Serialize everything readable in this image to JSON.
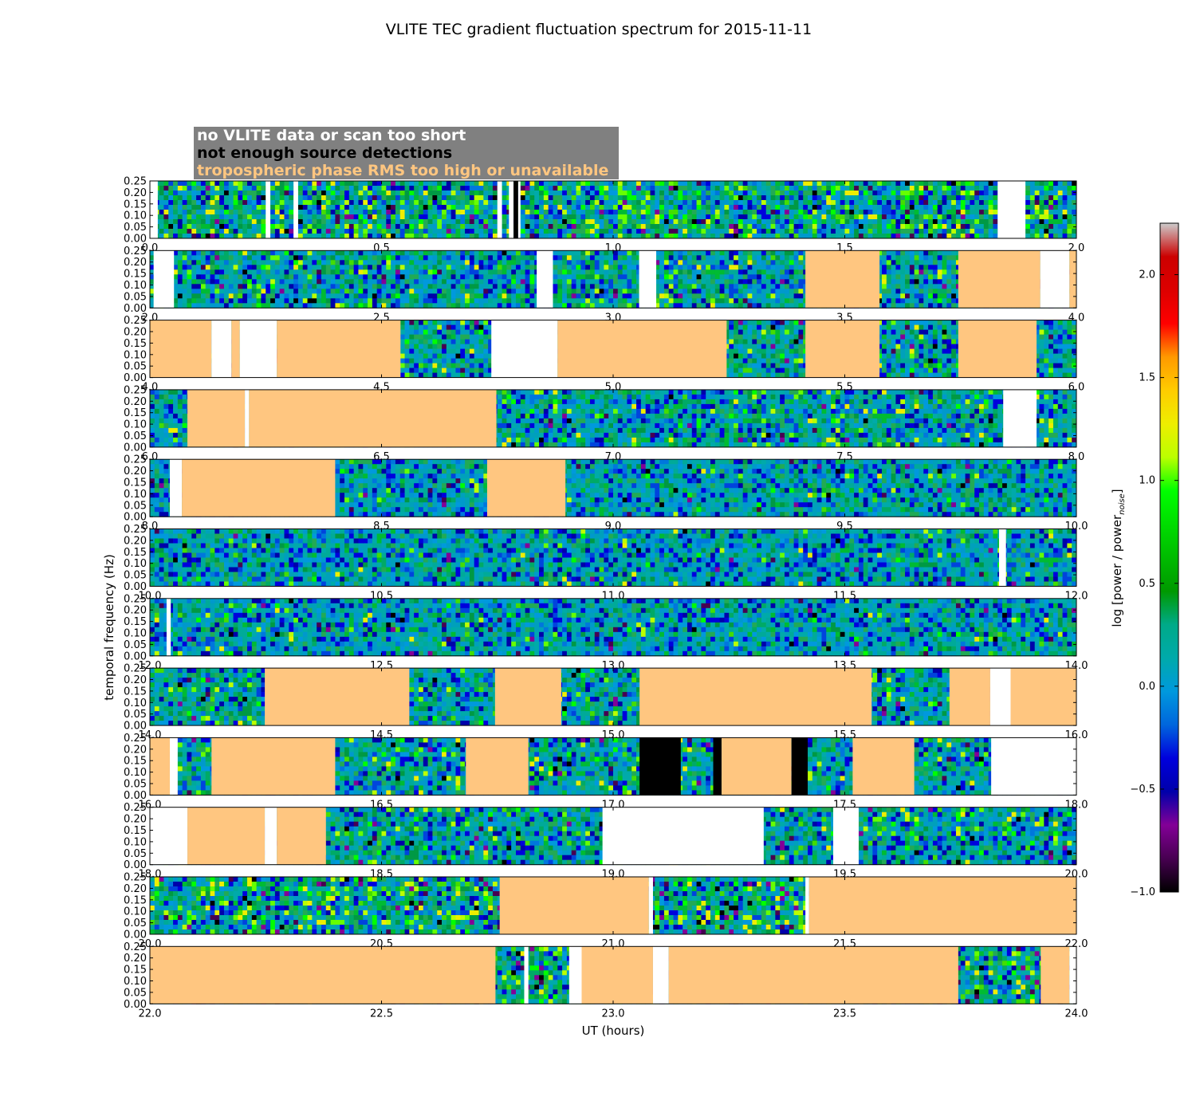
{
  "chart_data": {
    "type": "heatmap",
    "title": "VLITE TEC gradient fluctuation spectrum for 2015-11-11",
    "xlabel": "UT (hours)",
    "ylabel": "temporal frequency (Hz)",
    "ylim": [
      0,
      0.25
    ],
    "yticks": [
      "0.00",
      "0.05",
      "0.10",
      "0.15",
      "0.20",
      "0.25"
    ],
    "colorbar": {
      "label": "log [power / power",
      "label_sub": "noise",
      "label_close": "]",
      "range": [
        -1.0,
        2.25
      ],
      "ticks": [
        "−1.0",
        "−0.5",
        "0.0",
        "0.5",
        "1.0",
        "1.5",
        "2.0"
      ],
      "tick_values": [
        -1.0,
        -0.5,
        0.0,
        0.5,
        1.0,
        1.5,
        2.0
      ],
      "colormap": "nipy_spectral"
    },
    "legend": [
      {
        "label": "no VLITE data or scan too short",
        "color": "#ffffff"
      },
      {
        "label": "not enough source detections",
        "color": "#000000"
      },
      {
        "label": "tropospheric phase RMS too high or unavailable",
        "color": "#ffc680"
      }
    ],
    "legend_box_color": "#808080",
    "flag_colors": {
      "nodata": "#ffffff",
      "lowdet": "#000000",
      "trop": "#ffc680"
    },
    "panels": [
      {
        "start": 0,
        "xticks": [
          "0.0",
          "0.5",
          "1.0",
          "1.5",
          "2.0"
        ],
        "data_intensity": "high",
        "segments": [
          {
            "from": 0.0,
            "to": 0.017,
            "kind": "nodata"
          },
          {
            "from": 0.25,
            "to": 0.26,
            "kind": "nodata"
          },
          {
            "from": 0.31,
            "to": 0.32,
            "kind": "nodata"
          },
          {
            "from": 0.75,
            "to": 0.76,
            "kind": "nodata"
          },
          {
            "from": 0.775,
            "to": 0.785,
            "kind": "nodata"
          },
          {
            "from": 0.785,
            "to": 0.795,
            "kind": "lowdet"
          },
          {
            "from": 0.795,
            "to": 0.8,
            "kind": "nodata"
          },
          {
            "from": 1.83,
            "to": 1.89,
            "kind": "nodata"
          }
        ]
      },
      {
        "start": 2,
        "xticks": [
          "2.0",
          "2.5",
          "3.0",
          "3.5",
          "4.0"
        ],
        "data_intensity": "medium",
        "segments": [
          {
            "from": 2.008,
            "to": 2.052,
            "kind": "nodata"
          },
          {
            "from": 2.835,
            "to": 2.87,
            "kind": "nodata"
          },
          {
            "from": 3.056,
            "to": 3.093,
            "kind": "nodata"
          },
          {
            "from": 3.415,
            "to": 3.575,
            "kind": "trop"
          },
          {
            "from": 3.745,
            "to": 3.922,
            "kind": "trop"
          },
          {
            "from": 3.922,
            "to": 3.985,
            "kind": "nodata"
          },
          {
            "from": 3.985,
            "to": 4.0,
            "kind": "trop"
          }
        ]
      },
      {
        "start": 4,
        "xticks": [
          "4.0",
          "4.5",
          "5.0",
          "5.5",
          "6.0"
        ],
        "data_intensity": "medium",
        "segments": [
          {
            "from": 4.0,
            "to": 4.133,
            "kind": "trop"
          },
          {
            "from": 4.133,
            "to": 4.176,
            "kind": "nodata"
          },
          {
            "from": 4.176,
            "to": 4.194,
            "kind": "trop"
          },
          {
            "from": 4.194,
            "to": 4.274,
            "kind": "nodata"
          },
          {
            "from": 4.274,
            "to": 4.541,
            "kind": "trop"
          },
          {
            "from": 4.737,
            "to": 4.88,
            "kind": "nodata"
          },
          {
            "from": 4.88,
            "to": 5.245,
            "kind": "trop"
          },
          {
            "from": 5.415,
            "to": 5.575,
            "kind": "trop"
          },
          {
            "from": 5.745,
            "to": 5.914,
            "kind": "trop"
          }
        ]
      },
      {
        "start": 6,
        "xticks": [
          "6.0",
          "6.5",
          "7.0",
          "7.5",
          "8.0"
        ],
        "data_intensity": "medium",
        "segments": [
          {
            "from": 6.081,
            "to": 6.205,
            "kind": "trop"
          },
          {
            "from": 6.205,
            "to": 6.214,
            "kind": "nodata"
          },
          {
            "from": 6.214,
            "to": 6.748,
            "kind": "trop"
          },
          {
            "from": 7.842,
            "to": 7.914,
            "kind": "nodata"
          }
        ]
      },
      {
        "start": 8,
        "xticks": [
          "8.0",
          "8.5",
          "9.0",
          "9.5",
          "10.0"
        ],
        "data_intensity": "low",
        "segments": [
          {
            "from": 8.043,
            "to": 8.069,
            "kind": "nodata"
          },
          {
            "from": 8.069,
            "to": 8.4,
            "kind": "trop"
          },
          {
            "from": 8.728,
            "to": 8.897,
            "kind": "trop"
          }
        ]
      },
      {
        "start": 10,
        "xticks": [
          "10.0",
          "10.5",
          "11.0",
          "11.5",
          "12.0"
        ],
        "data_intensity": "low",
        "segments": [
          {
            "from": 11.833,
            "to": 11.848,
            "kind": "nodata"
          }
        ]
      },
      {
        "start": 12,
        "xticks": [
          "12.0",
          "12.5",
          "13.0",
          "13.5",
          "14.0"
        ],
        "data_intensity": "low",
        "segments": [
          {
            "from": 12.036,
            "to": 12.045,
            "kind": "nodata"
          }
        ]
      },
      {
        "start": 14,
        "xticks": [
          "14.0",
          "14.5",
          "15.0",
          "15.5",
          "16.0"
        ],
        "data_intensity": "medium",
        "segments": [
          {
            "from": 14.248,
            "to": 14.56,
            "kind": "trop"
          },
          {
            "from": 14.745,
            "to": 14.888,
            "kind": "trop"
          },
          {
            "from": 15.057,
            "to": 15.558,
            "kind": "trop"
          },
          {
            "from": 15.726,
            "to": 15.814,
            "kind": "trop"
          },
          {
            "from": 15.814,
            "to": 15.858,
            "kind": "nodata"
          },
          {
            "from": 15.858,
            "to": 16.0,
            "kind": "trop"
          }
        ]
      },
      {
        "start": 16,
        "xticks": [
          "16.0",
          "16.5",
          "17.0",
          "17.5",
          "18.0"
        ],
        "data_intensity": "medium",
        "segments": [
          {
            "from": 16.0,
            "to": 16.043,
            "kind": "trop"
          },
          {
            "from": 16.043,
            "to": 16.06,
            "kind": "nodata"
          },
          {
            "from": 16.133,
            "to": 16.4,
            "kind": "trop"
          },
          {
            "from": 16.682,
            "to": 16.817,
            "kind": "trop"
          },
          {
            "from": 17.057,
            "to": 17.146,
            "kind": "lowdet"
          },
          {
            "from": 17.216,
            "to": 17.234,
            "kind": "lowdet"
          },
          {
            "from": 17.234,
            "to": 17.385,
            "kind": "trop"
          },
          {
            "from": 17.385,
            "to": 17.42,
            "kind": "lowdet"
          },
          {
            "from": 17.517,
            "to": 17.65,
            "kind": "trop"
          },
          {
            "from": 17.816,
            "to": 18.0,
            "kind": "nodata"
          }
        ]
      },
      {
        "start": 18,
        "xticks": [
          "18.0",
          "18.5",
          "19.0",
          "19.5",
          "20.0"
        ],
        "data_intensity": "medium",
        "segments": [
          {
            "from": 18.0,
            "to": 18.081,
            "kind": "nodata"
          },
          {
            "from": 18.081,
            "to": 18.248,
            "kind": "trop"
          },
          {
            "from": 18.248,
            "to": 18.274,
            "kind": "nodata"
          },
          {
            "from": 18.274,
            "to": 18.38,
            "kind": "trop"
          },
          {
            "from": 18.977,
            "to": 19.325,
            "kind": "nodata"
          },
          {
            "from": 19.475,
            "to": 19.53,
            "kind": "nodata"
          }
        ]
      },
      {
        "start": 20,
        "xticks": [
          "20.0",
          "20.5",
          "21.0",
          "21.5",
          "22.0"
        ],
        "data_intensity": "high",
        "segments": [
          {
            "from": 20.755,
            "to": 21.077,
            "kind": "trop"
          },
          {
            "from": 21.077,
            "to": 21.086,
            "kind": "nodata"
          },
          {
            "from": 21.415,
            "to": 21.423,
            "kind": "nodata"
          },
          {
            "from": 21.423,
            "to": 22.0,
            "kind": "trop"
          }
        ]
      },
      {
        "start": 22,
        "xticks": [
          "22.0",
          "22.5",
          "23.0",
          "23.5",
          "24.0"
        ],
        "data_intensity": "high",
        "segments": [
          {
            "from": 22.0,
            "to": 22.746,
            "kind": "trop"
          },
          {
            "from": 22.808,
            "to": 22.817,
            "kind": "nodata"
          },
          {
            "from": 22.905,
            "to": 22.932,
            "kind": "nodata"
          },
          {
            "from": 22.932,
            "to": 23.086,
            "kind": "trop"
          },
          {
            "from": 23.086,
            "to": 23.12,
            "kind": "nodata"
          },
          {
            "from": 23.12,
            "to": 23.745,
            "kind": "trop"
          },
          {
            "from": 23.923,
            "to": 23.985,
            "kind": "trop"
          },
          {
            "from": 23.985,
            "to": 24.0,
            "kind": "nodata"
          }
        ]
      }
    ]
  }
}
